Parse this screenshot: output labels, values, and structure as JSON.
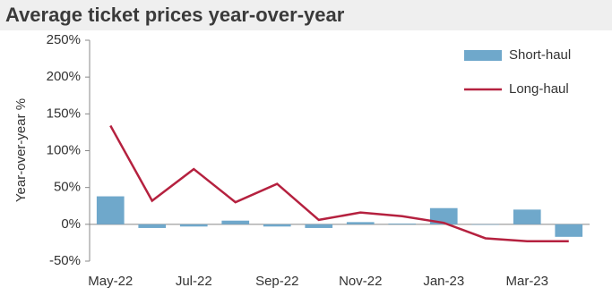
{
  "chart_data": {
    "type": "bar",
    "title": "Average ticket prices year-over-year",
    "y_label": "Year-over-year %",
    "categories": [
      "May-22",
      null,
      "Jul-22",
      null,
      "Sep-22",
      null,
      "Nov-22",
      null,
      "Jan-23",
      null,
      "Mar-23",
      null
    ],
    "series": [
      {
        "name": "Short-haul",
        "type": "bar",
        "color": "#6fa8cb",
        "values": [
          38,
          -5,
          -3,
          5,
          -3,
          -5,
          3,
          1,
          22,
          0,
          20,
          -17
        ]
      },
      {
        "name": "Long-haul",
        "type": "line",
        "color": "#b5213f",
        "values": [
          134,
          32,
          75,
          30,
          55,
          6,
          16,
          11,
          2,
          -19,
          -23,
          -23
        ]
      }
    ],
    "ylim": [
      -50,
      250
    ],
    "yticks": [
      {
        "value": -50,
        "label": "-50%"
      },
      {
        "value": 0,
        "label": "0%"
      },
      {
        "value": 50,
        "label": "50%"
      },
      {
        "value": 100,
        "label": "100%"
      },
      {
        "value": 150,
        "label": "150%"
      },
      {
        "value": 200,
        "label": "200%"
      },
      {
        "value": 250,
        "label": "250%"
      }
    ],
    "legend": "top-right"
  }
}
